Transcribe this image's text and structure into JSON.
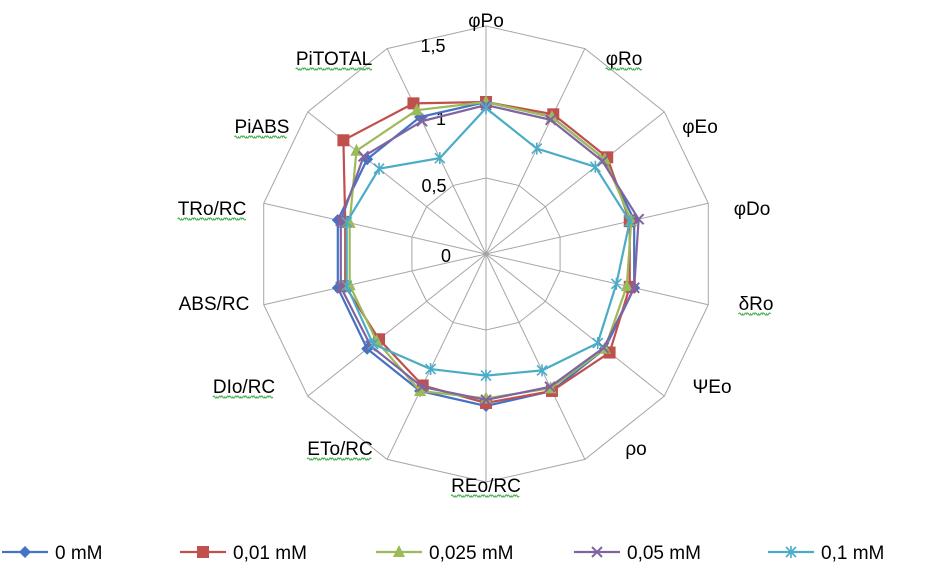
{
  "chart_data": {
    "type": "radar",
    "axes": [
      "φPo",
      "φRo",
      "φEo",
      "φDo",
      "δRo",
      "ΨEo",
      "ρo",
      "REo/RC",
      "ETo/RC",
      "DIo/RC",
      "ABS/RC",
      "TRo/RC",
      "PiABS",
      "PiTOTAL"
    ],
    "rlim": [
      0,
      1.5
    ],
    "ticks": [
      "0",
      "0,5",
      "1",
      "1,5"
    ],
    "tick_values": [
      0,
      0.5,
      1,
      1.5
    ],
    "grid": true,
    "legend_position": "bottom",
    "series": [
      {
        "name": "0 mM",
        "color": "#4472c4",
        "marker": "diamond",
        "values": [
          1.0,
          1.0,
          1.0,
          1.0,
          1.0,
          1.0,
          1.0,
          1.0,
          1.0,
          1.0,
          1.0,
          1.0,
          1.0,
          1.0
        ]
      },
      {
        "name": "0,01 mM",
        "color": "#c0504d",
        "marker": "square",
        "values": [
          1.0,
          1.02,
          1.02,
          0.97,
          0.97,
          1.04,
          1.0,
          0.98,
          0.96,
          0.9,
          0.95,
          0.95,
          1.2,
          1.1
        ]
      },
      {
        "name": "0,025 mM",
        "color": "#9bbb59",
        "marker": "triangle",
        "values": [
          1.0,
          1.0,
          1.0,
          0.98,
          0.95,
          1.0,
          0.98,
          0.95,
          1.0,
          0.92,
          0.92,
          0.92,
          1.09,
          1.05
        ]
      },
      {
        "name": "0,05 mM",
        "color": "#8064a2",
        "marker": "x",
        "values": [
          0.98,
          0.98,
          0.98,
          1.03,
          1.0,
          0.99,
          0.97,
          0.96,
          0.97,
          0.97,
          0.98,
          0.98,
          1.03,
          0.97
        ]
      },
      {
        "name": "0,1 mM",
        "color": "#4bacc6",
        "marker": "star",
        "values": [
          0.96,
          0.77,
          0.92,
          0.97,
          0.88,
          0.94,
          0.85,
          0.8,
          0.84,
          0.95,
          0.94,
          0.94,
          0.9,
          0.7
        ]
      }
    ]
  }
}
